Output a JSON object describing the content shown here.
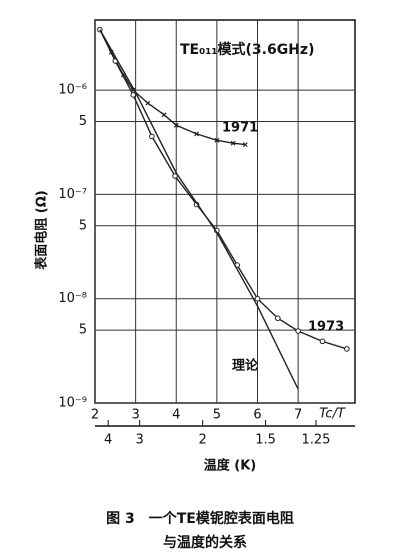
{
  "chart_data": {
    "type": "line",
    "title": "TE₀₁₁模式(3.6GHz)",
    "ylabel": "表面电阻 (Ω)",
    "xlabel": "Tc/T",
    "x2label": "温度 (K)",
    "caption": [
      "图 3　一个TE模铌腔表面电阻",
      "与温度的关系"
    ],
    "xlim": [
      2,
      8.4
    ],
    "xticks": [
      2,
      3,
      4,
      5,
      6,
      7
    ],
    "x2lim": [
      4.65,
      1.107
    ],
    "x2scale": "reciprocal",
    "x2ticks": [
      4,
      3,
      2,
      1.5,
      1.25
    ],
    "ylim": [
      1e-09,
      4.7e-06
    ],
    "yscale": "log",
    "yticks": [
      {
        "value": 1e-09,
        "label": "10⁻⁹"
      },
      {
        "value": 5e-09,
        "label": "5"
      },
      {
        "value": 1e-08,
        "label": "10⁻⁸"
      },
      {
        "value": 5e-08,
        "label": "5"
      },
      {
        "value": 1e-07,
        "label": "10⁻⁷"
      },
      {
        "value": 5e-07,
        "label": "5"
      },
      {
        "value": 1e-06,
        "label": "10⁻⁶"
      }
    ],
    "grid": true,
    "series": [
      {
        "name": "1971",
        "color": "#222",
        "marker": "cross",
        "x": [
          2.12,
          2.4,
          2.7,
          2.94,
          3.3,
          3.7,
          4.0,
          4.5,
          5.0,
          5.4,
          5.7
        ],
        "values": [
          3.8e-06,
          2.3e-06,
          1.4e-06,
          1e-06,
          7.5e-07,
          5.8e-07,
          4.6e-07,
          3.8e-07,
          3.3e-07,
          3.1e-07,
          3e-07
        ]
      },
      {
        "name": "1973",
        "color": "#222",
        "marker": "circle",
        "x": [
          2.12,
          2.5,
          2.94,
          3.4,
          3.97,
          4.5,
          5.0,
          5.5,
          6.0,
          6.5,
          7.0,
          7.6,
          8.2
        ],
        "values": [
          3.8e-06,
          1.9e-06,
          9e-07,
          3.6e-07,
          1.5e-07,
          8e-08,
          4.5e-08,
          2.1e-08,
          1e-08,
          6.5e-09,
          4.9e-09,
          3.9e-09,
          3.3e-09
        ]
      },
      {
        "name": "理论",
        "color": "#222",
        "marker": "none",
        "x": [
          2.12,
          3,
          4,
          5,
          6,
          7
        ],
        "values": [
          3.8e-06,
          9.5e-07,
          1.6e-07,
          4.3e-08,
          8.5e-09,
          1.36e-09
        ]
      }
    ]
  }
}
